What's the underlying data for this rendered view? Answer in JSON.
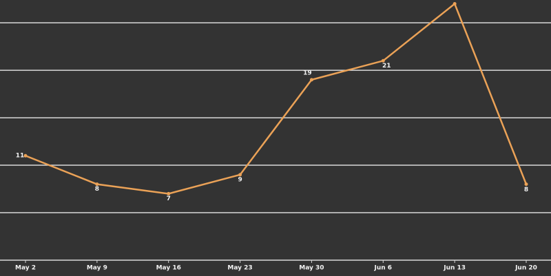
{
  "chart_data": {
    "type": "line",
    "categories": [
      "May 2",
      "May 9",
      "May 16",
      "May 23",
      "May 30",
      "Jun 6",
      "Jun 13",
      "Jun 20"
    ],
    "series": [
      {
        "color": "#eba257",
        "values": [
          11,
          8,
          7,
          9,
          19,
          21,
          27,
          8
        ],
        "value_labels": [
          "11",
          "8",
          "7",
          "9",
          "19",
          "21",
          null,
          "8"
        ]
      }
    ],
    "ylim": [
      0,
      27.4
    ],
    "gridlines": [
      5,
      10,
      15,
      20,
      25
    ],
    "grid": true
  }
}
